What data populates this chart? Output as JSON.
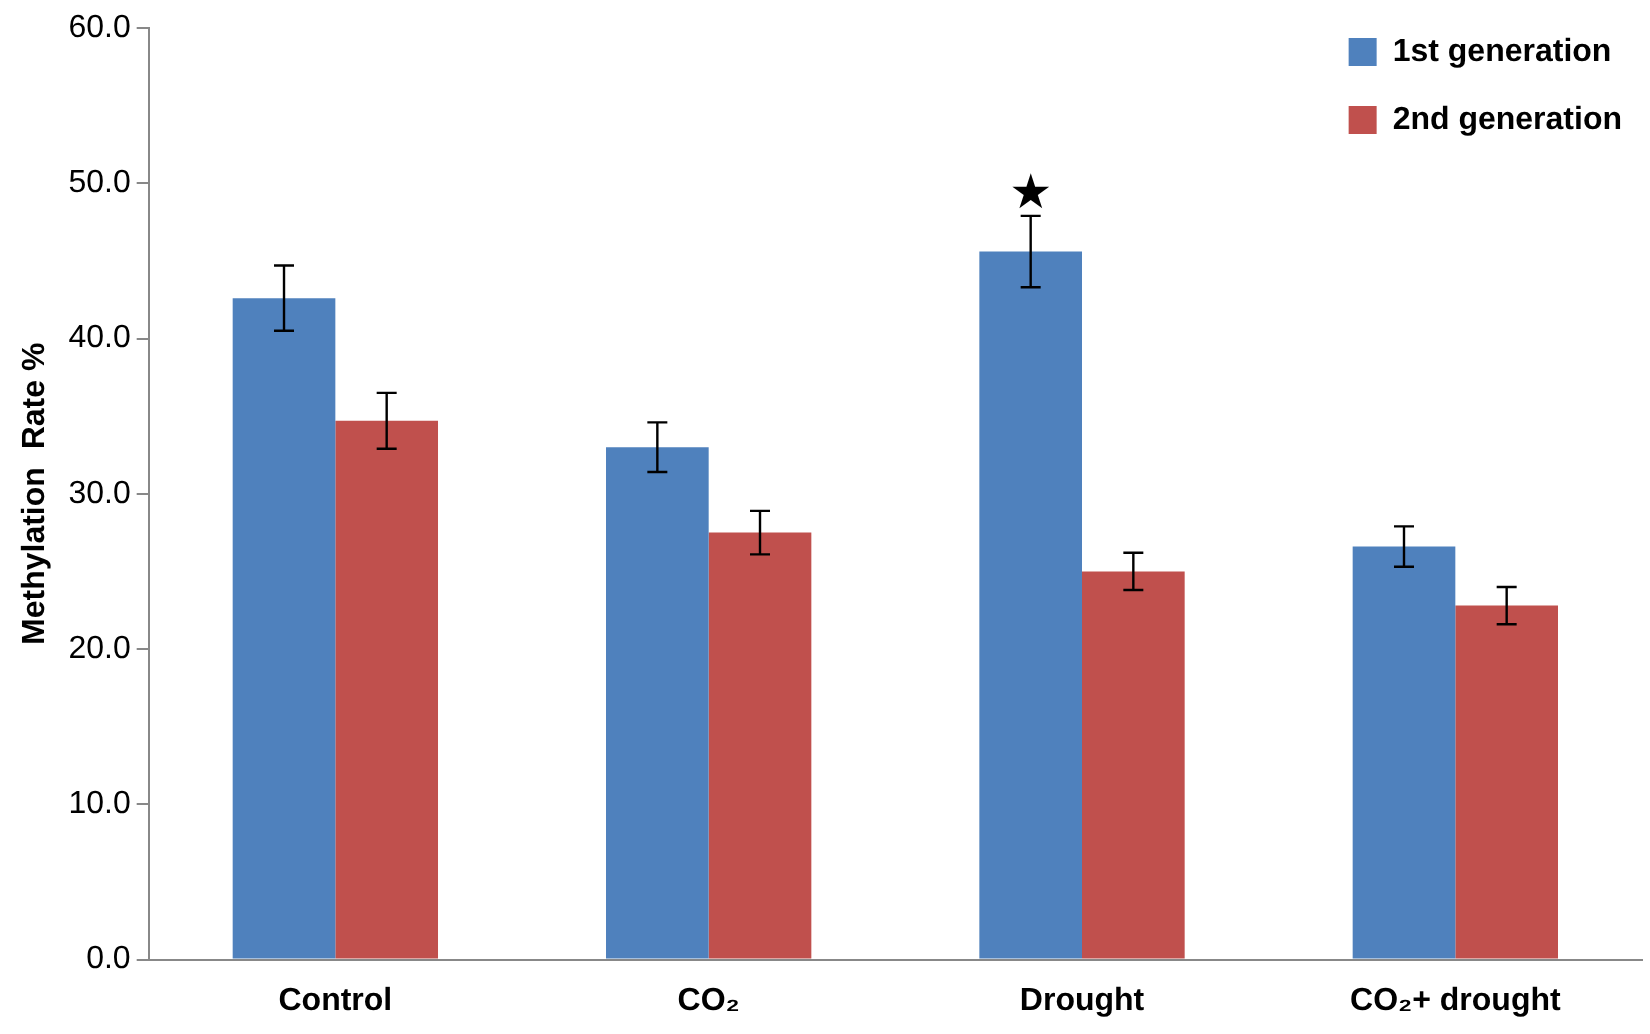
{
  "chart_data": {
    "type": "bar",
    "ylabel": "Methylation  Rate %",
    "categories": [
      "Control",
      "CO₂",
      "Drought",
      "CO₂+ drought"
    ],
    "series": [
      {
        "name": "1st generation",
        "color": "#4f81bd",
        "values": [
          42.6,
          33.0,
          45.6,
          26.6
        ],
        "errors": [
          2.1,
          1.6,
          2.3,
          1.3
        ]
      },
      {
        "name": "2nd generation",
        "color": "#c0504d",
        "values": [
          34.7,
          27.5,
          25.0,
          22.8
        ],
        "errors": [
          1.8,
          1.4,
          1.2,
          1.2
        ]
      }
    ],
    "ylim": [
      0,
      60
    ],
    "yticks": [
      {
        "value": 0,
        "label": "0.0"
      },
      {
        "value": 10,
        "label": "10.0"
      },
      {
        "value": 20,
        "label": "20.0"
      },
      {
        "value": 30,
        "label": "30.0"
      },
      {
        "value": 40,
        "label": "40.0"
      },
      {
        "value": 50,
        "label": "50.0"
      },
      {
        "value": 60,
        "label": "60.0"
      }
    ],
    "grid": false,
    "legend": "top right",
    "annotations": [
      "★"
    ]
  }
}
